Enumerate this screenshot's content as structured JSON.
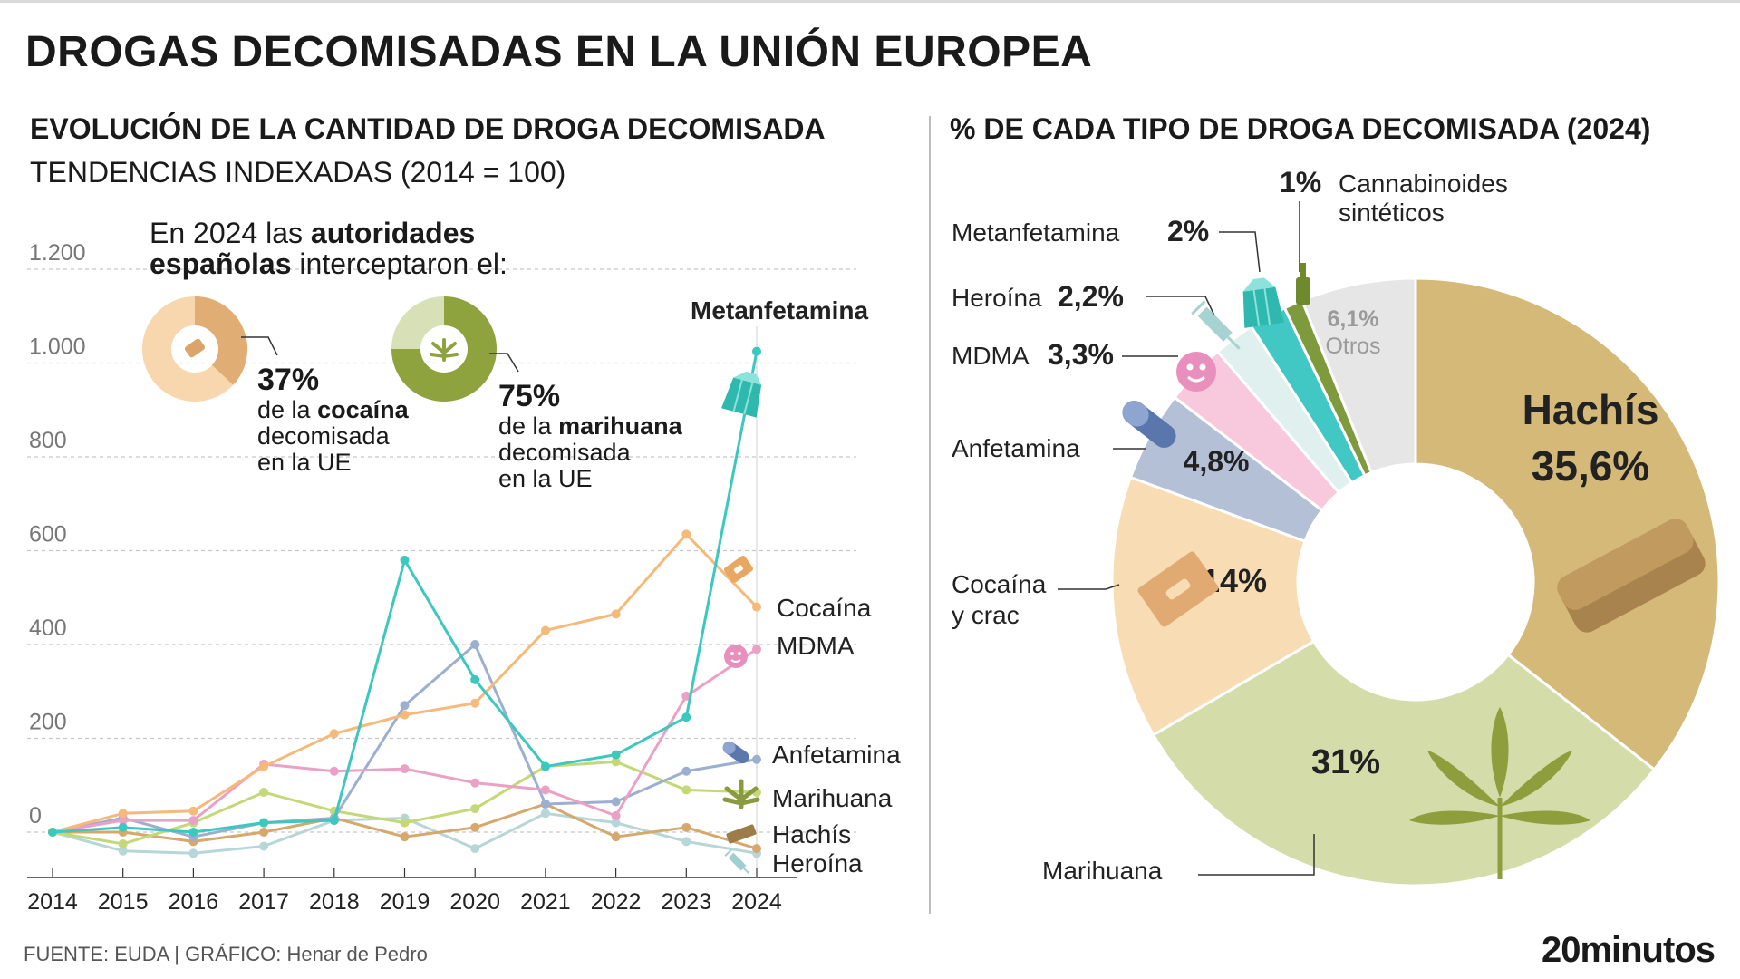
{
  "title": "DROGAS DECOMISADAS EN LA UNIÓN EUROPEA",
  "left_title": "EVOLUCIÓN DE LA CANTIDAD DE DROGA DECOMISADA",
  "left_subtitle": "TENDENCIAS INDEXADAS (2014 = 100)",
  "right_title": "% DE CADA TIPO DE DROGA DECOMISADA (2024)",
  "source": "FUENTE: EUDA  |  GRÁFICO: Henar de Pedro",
  "brand": "20minutos",
  "callout": {
    "line1_a": "En 2024 las ",
    "line1_b": "autoridades",
    "line2_a": "españolas",
    "line2_b": " interceptaron el:",
    "cocaine": {
      "pct": "37%",
      "l1a": "de la ",
      "l1b": "cocaína",
      "l2": "decomisada",
      "l3": "en la UE",
      "value": 0.37
    },
    "marijuana": {
      "pct": "75%",
      "l1a": "de la ",
      "l1b": "marihuana",
      "l2": "decomisada",
      "l3": "en la UE",
      "value": 0.75
    }
  },
  "colors": {
    "metanfetamina": "#3cc8be",
    "cocaina": "#f5b97a",
    "mdma": "#eba1c6",
    "anfetamina": "#9cafd0",
    "marihuana": "#c3d877",
    "hachis": "#d6a86b",
    "heroina": "#b6d6d8",
    "grid": "#c8c8c8"
  },
  "chart_data": [
    {
      "type": "line",
      "x": [
        "2014",
        "2015",
        "2016",
        "2017",
        "2018",
        "2019",
        "2020",
        "2021",
        "2022",
        "2023",
        "2024"
      ],
      "ylim": [
        0,
        1200
      ],
      "yticks": [
        0,
        200,
        400,
        600,
        800,
        1000,
        1200
      ],
      "ytick_labels": [
        "0",
        "200",
        "400",
        "600",
        "800",
        "1.000",
        "1.200"
      ],
      "grid": true,
      "series": [
        {
          "name": "Metanfetamina",
          "key": "metanfetamina",
          "values": [
            0,
            10,
            0,
            20,
            25,
            580,
            325,
            140,
            165,
            245,
            1025
          ]
        },
        {
          "name": "Cocaína",
          "key": "cocaina",
          "values": [
            0,
            40,
            45,
            140,
            210,
            250,
            275,
            430,
            465,
            635,
            480
          ]
        },
        {
          "name": "MDMA",
          "key": "mdma",
          "values": [
            0,
            25,
            25,
            145,
            130,
            135,
            105,
            90,
            35,
            290,
            390
          ]
        },
        {
          "name": "Anfetamina",
          "key": "anfetamina",
          "values": [
            0,
            30,
            -10,
            20,
            30,
            270,
            400,
            60,
            65,
            130,
            155
          ]
        },
        {
          "name": "Marihuana",
          "key": "marihuana",
          "values": [
            0,
            -25,
            20,
            85,
            45,
            20,
            50,
            140,
            150,
            90,
            85
          ]
        },
        {
          "name": "Hachís",
          "key": "hachis",
          "values": [
            0,
            0,
            -20,
            0,
            30,
            -10,
            10,
            60,
            -10,
            10,
            -35
          ]
        },
        {
          "name": "Heroína",
          "key": "heroina",
          "values": [
            0,
            -40,
            -45,
            -30,
            25,
            30,
            -35,
            40,
            20,
            -20,
            -45
          ]
        }
      ]
    },
    {
      "type": "pie",
      "donut": true,
      "categories": [
        "Hachís",
        "Marihuana",
        "Cocaína y crac",
        "Anfetamina",
        "MDMA",
        "Heroína",
        "Metanfetamina",
        "Cannabinoides sintéticos",
        "Otros"
      ],
      "values": [
        35.6,
        31,
        14,
        4.8,
        3.3,
        2.2,
        2,
        1,
        6.1
      ],
      "labels": [
        "35,6%",
        "31%",
        "14%",
        "4,8%",
        "3,3%",
        "2,2%",
        "2%",
        "1%",
        "6,1%"
      ],
      "colors": [
        "#d4b978",
        "#d4dcaa",
        "#f8dcb4",
        "#b4c0d6",
        "#f8c8dc",
        "#e0f0ee",
        "#42c8c4",
        "#7f9a3c",
        "#e6e6e6"
      ]
    }
  ]
}
